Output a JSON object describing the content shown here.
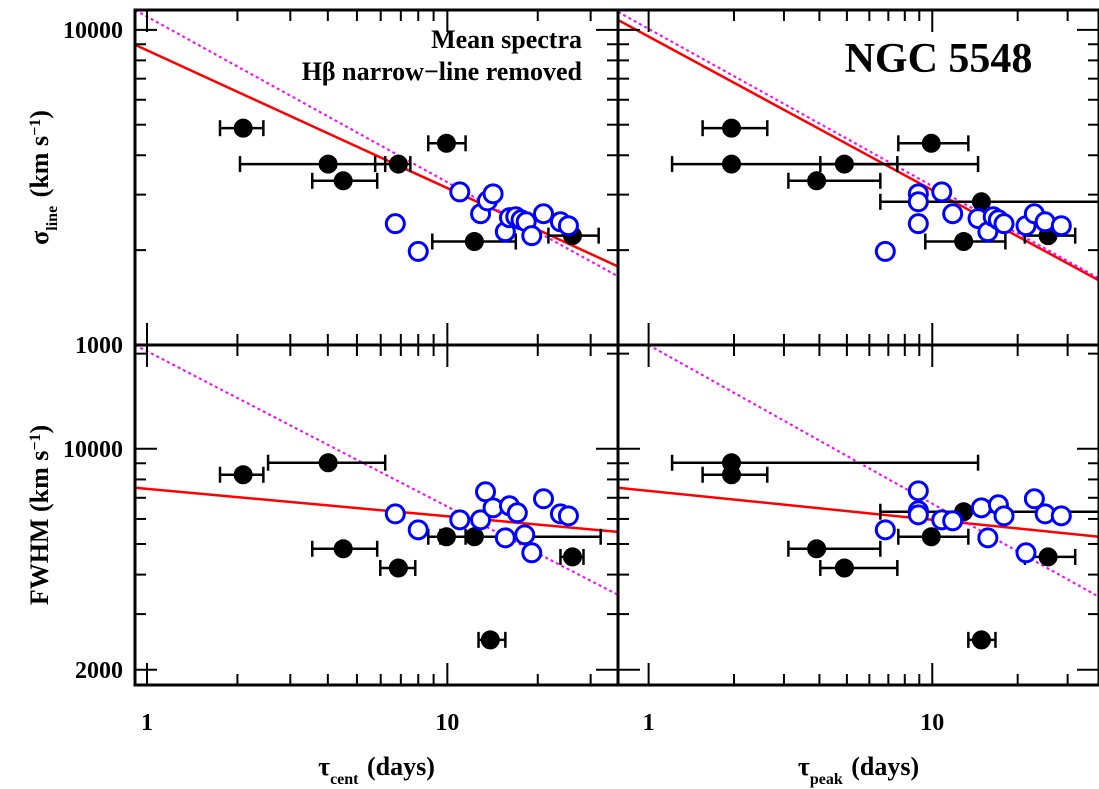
{
  "chart_data": [
    {
      "type": "scatter",
      "log": true,
      "xlim": [
        0.912,
        37
      ],
      "ylim": [
        1000,
        11560
      ],
      "xticks": [
        1,
        10
      ],
      "xminor": [
        2,
        3,
        4,
        5,
        6,
        7,
        8,
        9,
        20,
        30
      ],
      "yticks": [
        1000,
        10000
      ],
      "yminor": [
        2000,
        3000,
        4000,
        5000,
        6000,
        7000,
        8000,
        9000
      ],
      "ylabel": [
        "σ",
        "line",
        " (km s",
        "−1",
        ")"
      ],
      "notes": [
        "Mean spectra",
        "Hβ narrow−line removed"
      ],
      "series": [
        {
          "color": "#000000",
          "filled": true,
          "x": [
            2.09,
            4.01,
            4.5,
            6.87,
            9.93,
            12.3,
            26.1
          ],
          "values": [
            4875,
            3750,
            3319,
            3750,
            4365,
            2130,
            2223
          ],
          "xerr": [
            [
              1.75,
              2.44
            ],
            [
              2.04,
              6.21
            ],
            [
              3.55,
              5.84
            ],
            [
              5.75,
              7.53
            ],
            [
              8.64,
              11.5
            ],
            [
              8.91,
              16.9
            ],
            [
              21.7,
              31.9
            ]
          ]
        },
        {
          "color": "#0000ff",
          "filled": false,
          "x": [
            11.0,
            12.9,
            13.6,
            14.2,
            6.71,
            8.0,
            15.6,
            16.1,
            16.9,
            17.6,
            18.3,
            19.1,
            20.9,
            23.8,
            25.3
          ],
          "values": [
            3060,
            2609,
            2866,
            3017,
            2427,
            1981,
            2288,
            2535,
            2553,
            2496,
            2460,
            2223,
            2609,
            2460,
            2391
          ]
        }
      ],
      "fits": [
        {
          "color": "#ff0000",
          "dash": false,
          "x": [
            0.912,
            37
          ],
          "values": [
            8966,
            1775
          ]
        },
        {
          "color": "#ff00ff",
          "dash": true,
          "x": [
            0.912,
            37
          ],
          "values": [
            11560,
            1651
          ]
        }
      ]
    },
    {
      "type": "scatter",
      "log": true,
      "xlim": [
        0.78,
        38.7
      ],
      "ylim": [
        1000,
        11560
      ],
      "xticks": [
        1,
        10
      ],
      "xminor": [
        2,
        3,
        4,
        5,
        6,
        7,
        8,
        9,
        20,
        30
      ],
      "yticks": [
        1000,
        10000
      ],
      "yminor": [
        2000,
        3000,
        4000,
        5000,
        6000,
        7000,
        8000,
        9000
      ],
      "title": "NGC 5548",
      "series": [
        {
          "color": "#000000",
          "filled": true,
          "x": [
            1.96,
            1.96,
            3.91,
            4.9,
            9.92,
            12.9,
            14.9,
            25.6
          ],
          "values": [
            4875,
            3750,
            3319,
            3750,
            4365,
            2130,
            2847,
            2223
          ],
          "xerr": [
            [
              1.55,
              2.62
            ],
            [
              1.21,
              14.5
            ],
            [
              3.11,
              6.56
            ],
            [
              4.03,
              7.53
            ],
            [
              7.59,
              13.4
            ],
            [
              9.45,
              18.1
            ],
            [
              6.56,
              38.7
            ],
            [
              21.2,
              31.9
            ]
          ]
        },
        {
          "color": "#0000ff",
          "filled": false,
          "x": [
            8.93,
            10.8,
            8.93,
            8.93,
            11.8,
            6.83,
            14.5,
            15.7,
            16.4,
            17.1,
            17.9,
            21.4,
            22.9,
            25.0,
            28.5
          ],
          "values": [
            3017,
            3060,
            2847,
            2427,
            2609,
            1981,
            2518,
            2288,
            2553,
            2496,
            2427,
            2391,
            2609,
            2460,
            2391
          ]
        }
      ],
      "fits": [
        {
          "color": "#ff0000",
          "dash": false,
          "x": [
            0.78,
            38.7
          ],
          "values": [
            10750,
            1603
          ]
        },
        {
          "color": "#ff00ff",
          "dash": true,
          "x": [
            0.78,
            38.7
          ],
          "values": [
            11400,
            1627
          ]
        }
      ]
    },
    {
      "type": "scatter",
      "log": true,
      "xlim": [
        0.912,
        37
      ],
      "ylim": [
        1790,
        21300
      ],
      "xticks": [
        1,
        10
      ],
      "xminor": [
        2,
        3,
        4,
        5,
        6,
        7,
        8,
        9,
        20,
        30
      ],
      "yticks": [
        2000,
        10000
      ],
      "yminor": [
        3000,
        4000,
        5000,
        6000,
        7000,
        8000,
        9000,
        20000
      ],
      "ylabel": [
        "FWHM",
        "",
        " (km s",
        "−1",
        ")"
      ],
      "xlabel": [
        "τ",
        "cent",
        " (days)"
      ],
      "series": [
        {
          "color": "#000000",
          "filled": true,
          "x": [
            2.09,
            4.01,
            4.5,
            6.87,
            9.93,
            12.3,
            13.9,
            26.1
          ],
          "values": [
            8277,
            9036,
            4828,
            4198,
            5270,
            5270,
            2487,
            4550
          ],
          "xerr": [
            [
              1.75,
              2.44
            ],
            [
              2.53,
              6.21
            ],
            [
              3.55,
              5.84
            ],
            [
              5.98,
              7.82
            ],
            [
              8.64,
              11.5
            ],
            [
              9.48,
              32.4
            ],
            [
              12.7,
              15.6
            ],
            [
              23.8,
              28.4
            ]
          ]
        },
        {
          "color": "#0000ff",
          "filled": false,
          "x": [
            6.71,
            8.0,
            11.0,
            12.9,
            13.4,
            14.2,
            15.6,
            16.1,
            17.1,
            18.1,
            19.1,
            20.9,
            23.8,
            25.3
          ],
          "values": [
            6225,
            5543,
            5961,
            5961,
            7311,
            6505,
            5228,
            6604,
            6275,
            5343,
            4689,
            6950,
            6225,
            6137
          ]
        }
      ],
      "fits": [
        {
          "color": "#ff0000",
          "dash": false,
          "x": [
            0.912,
            37
          ],
          "values": [
            7530,
            5460
          ]
        },
        {
          "color": "#ff00ff",
          "dash": true,
          "x": [
            0.912,
            37
          ],
          "values": [
            21300,
            3450
          ]
        }
      ]
    },
    {
      "type": "scatter",
      "log": true,
      "xlim": [
        0.78,
        38.7
      ],
      "ylim": [
        1790,
        21300
      ],
      "xticks": [
        1,
        10
      ],
      "xminor": [
        2,
        3,
        4,
        5,
        6,
        7,
        8,
        9,
        20,
        30
      ],
      "yticks": [
        2000,
        10000
      ],
      "yminor": [
        3000,
        4000,
        5000,
        6000,
        7000,
        8000,
        9000,
        20000
      ],
      "xlabel": [
        "τ",
        "peak",
        " (days)"
      ],
      "series": [
        {
          "color": "#000000",
          "filled": true,
          "x": [
            1.96,
            1.96,
            3.91,
            4.9,
            9.92,
            12.9,
            14.9,
            25.6
          ],
          "values": [
            9036,
            8277,
            4828,
            4198,
            5270,
            6323,
            2487,
            4550
          ],
          "xerr": [
            [
              1.21,
              14.5
            ],
            [
              1.55,
              2.62
            ],
            [
              3.11,
              6.56
            ],
            [
              4.03,
              7.53
            ],
            [
              7.59,
              13.4
            ],
            [
              6.56,
              38.7
            ],
            [
              13.4,
              16.7
            ],
            [
              21.2,
              31.9
            ]
          ]
        },
        {
          "color": "#0000ff",
          "filled": false,
          "x": [
            8.93,
            8.93,
            8.93,
            10.8,
            11.8,
            6.83,
            14.9,
            15.7,
            17.1,
            17.9,
            21.4,
            22.9,
            25.0,
            28.5
          ],
          "values": [
            7362,
            6368,
            6180,
            5961,
            5920,
            5543,
            6505,
            5228,
            6653,
            6137,
            4689,
            6950,
            6225,
            6137
          ]
        }
      ],
      "fits": [
        {
          "color": "#ff0000",
          "dash": false,
          "x": [
            0.78,
            38.7
          ],
          "values": [
            7530,
            5270
          ]
        },
        {
          "color": "#ff00ff",
          "dash": true,
          "x": [
            1,
            38.7
          ],
          "values": [
            21300,
            3400
          ]
        }
      ]
    }
  ]
}
